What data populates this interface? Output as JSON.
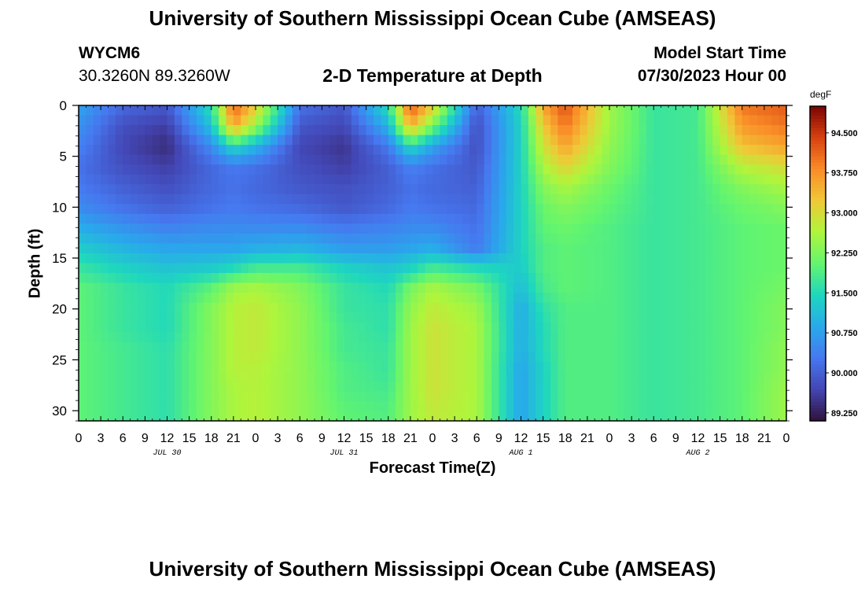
{
  "header": {
    "title": "University of Southern Mississippi Ocean Cube (AMSEAS)",
    "station_id": "WYCM6",
    "station_coords": "30.3260N  89.3260W",
    "plot_title": "2-D Temperature at Depth",
    "model_start_label": "Model Start Time",
    "model_start_value": "07/30/2023 Hour 00"
  },
  "footer": {
    "title": "University of Southern Mississippi Ocean Cube (AMSEAS)"
  },
  "chart_data": {
    "type": "heatmap",
    "title": "2-D Temperature at Depth",
    "xlabel": "Forecast Time(Z)",
    "ylabel": "Depth (ft)",
    "x_range_hours": [
      0,
      96
    ],
    "y_range_ft": [
      0,
      31
    ],
    "x_tick_labels": [
      "0",
      "3",
      "6",
      "9",
      "12",
      "15",
      "18",
      "21",
      "0",
      "3",
      "6",
      "9",
      "12",
      "15",
      "18",
      "21",
      "0",
      "3",
      "6",
      "9",
      "12",
      "15",
      "18",
      "21",
      "0",
      "3",
      "6",
      "9",
      "12",
      "15",
      "18",
      "21",
      "0"
    ],
    "day_labels": [
      "JUL 30",
      "JUL 31",
      "AUG 1",
      "AUG 2"
    ],
    "y_ticks": [
      0,
      5,
      10,
      15,
      20,
      25,
      30
    ],
    "colorbar": {
      "unit": "degF",
      "range": [
        89.1,
        95.0
      ],
      "ticks": [
        94.5,
        93.75,
        93.0,
        92.25,
        91.5,
        90.75,
        90.0,
        89.25
      ],
      "tick_labels": [
        "94.500",
        "93.750",
        "93.000",
        "92.250",
        "91.500",
        "90.750",
        "90.000",
        "89.250"
      ]
    },
    "depths_ft": [
      0,
      2,
      4,
      6,
      8,
      10,
      12,
      14,
      16,
      18,
      20,
      22,
      24,
      26,
      28,
      30,
      31
    ],
    "times_hours": [
      0,
      6,
      12,
      18,
      21,
      24,
      30,
      36,
      42,
      45,
      48,
      54,
      60,
      63,
      66,
      72,
      78,
      84,
      90,
      96
    ],
    "temperature_degF": [
      [
        90.8,
        90.1,
        89.9,
        91.6,
        94.2,
        93.2,
        90.2,
        89.9,
        91.6,
        94.3,
        93.2,
        90.0,
        91.5,
        93.6,
        94.3,
        92.5,
        91.7,
        91.8,
        94.0,
        94.2
      ],
      [
        90.6,
        89.8,
        89.6,
        91.2,
        93.6,
        92.5,
        89.9,
        89.7,
        91.0,
        93.5,
        92.2,
        89.8,
        91.4,
        93.2,
        94.0,
        92.5,
        91.7,
        91.8,
        93.7,
        94.0
      ],
      [
        90.4,
        89.7,
        89.4,
        90.5,
        91.5,
        91.0,
        89.7,
        89.5,
        90.3,
        91.5,
        90.8,
        89.8,
        91.4,
        92.9,
        93.6,
        92.4,
        91.7,
        91.8,
        93.3,
        93.6
      ],
      [
        90.2,
        89.8,
        89.6,
        90.1,
        90.3,
        90.2,
        89.8,
        89.6,
        90.0,
        90.4,
        90.2,
        89.9,
        91.4,
        92.6,
        93.1,
        92.3,
        91.7,
        91.8,
        92.7,
        93.0
      ],
      [
        90.3,
        90.0,
        89.8,
        90.1,
        90.2,
        90.1,
        89.9,
        89.8,
        90.0,
        90.2,
        90.1,
        90.0,
        91.4,
        92.3,
        92.6,
        92.1,
        91.7,
        91.8,
        92.3,
        92.6
      ],
      [
        90.5,
        90.2,
        90.0,
        90.2,
        90.3,
        90.2,
        90.1,
        89.9,
        90.1,
        90.3,
        90.2,
        90.1,
        91.4,
        92.1,
        92.3,
        92.0,
        91.7,
        91.8,
        92.1,
        92.3
      ],
      [
        90.9,
        90.6,
        90.4,
        90.5,
        90.5,
        90.5,
        90.5,
        90.3,
        90.4,
        90.5,
        90.5,
        90.2,
        91.4,
        92.0,
        92.1,
        91.9,
        91.7,
        91.8,
        92.0,
        92.1
      ],
      [
        91.3,
        91.0,
        90.8,
        90.8,
        90.8,
        90.9,
        91.0,
        90.7,
        90.7,
        90.8,
        90.9,
        90.3,
        91.4,
        91.9,
        92.0,
        91.9,
        91.7,
        91.8,
        92.0,
        92.1
      ],
      [
        91.7,
        91.4,
        91.2,
        91.3,
        91.5,
        91.8,
        91.8,
        91.4,
        91.2,
        91.4,
        91.8,
        91.5,
        91.3,
        91.9,
        92.0,
        91.9,
        91.7,
        91.8,
        92.0,
        92.1
      ],
      [
        92.0,
        91.7,
        91.5,
        92.0,
        92.5,
        92.6,
        92.3,
        91.7,
        91.5,
        92.2,
        92.6,
        92.2,
        91.1,
        91.8,
        92.0,
        91.9,
        91.7,
        91.8,
        92.0,
        92.2
      ],
      [
        92.0,
        91.7,
        91.5,
        92.3,
        92.7,
        92.8,
        92.4,
        91.7,
        91.6,
        92.4,
        92.8,
        92.5,
        90.9,
        91.6,
        91.9,
        91.9,
        91.7,
        91.8,
        92.0,
        92.3
      ],
      [
        92.0,
        91.7,
        91.5,
        92.3,
        92.7,
        92.8,
        92.4,
        91.8,
        91.6,
        92.5,
        92.9,
        92.6,
        90.9,
        91.5,
        91.9,
        91.9,
        91.7,
        91.8,
        92.0,
        92.3
      ],
      [
        92.0,
        91.8,
        91.6,
        92.3,
        92.7,
        92.8,
        92.4,
        91.8,
        91.7,
        92.5,
        92.9,
        92.6,
        90.9,
        91.5,
        91.9,
        91.9,
        91.7,
        91.8,
        92.0,
        92.4
      ],
      [
        92.0,
        91.8,
        91.6,
        92.3,
        92.7,
        92.7,
        92.4,
        91.9,
        91.7,
        92.5,
        92.9,
        92.6,
        90.8,
        91.4,
        91.9,
        91.9,
        91.7,
        91.8,
        92.0,
        92.4
      ],
      [
        92.0,
        91.8,
        91.6,
        92.3,
        92.6,
        92.7,
        92.4,
        91.9,
        91.8,
        92.5,
        92.9,
        92.6,
        90.8,
        91.4,
        91.9,
        91.9,
        91.7,
        91.8,
        92.0,
        92.5
      ],
      [
        92.0,
        91.8,
        91.6,
        92.3,
        92.6,
        92.7,
        92.4,
        92.0,
        91.9,
        92.5,
        92.8,
        92.6,
        90.8,
        91.4,
        91.9,
        91.9,
        91.7,
        91.8,
        92.0,
        92.5
      ],
      [
        92.0,
        91.8,
        91.6,
        92.3,
        92.6,
        92.7,
        92.4,
        92.0,
        91.9,
        92.5,
        92.8,
        92.6,
        90.8,
        91.4,
        91.9,
        91.9,
        91.7,
        91.8,
        92.0,
        92.5
      ]
    ]
  }
}
